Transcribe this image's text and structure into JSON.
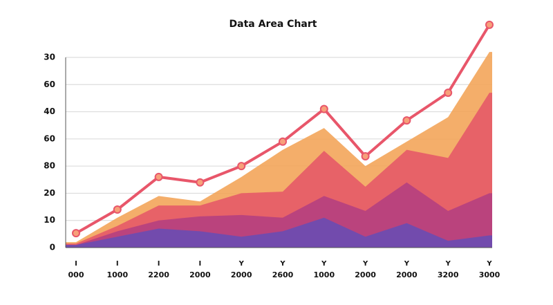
{
  "chart_data": {
    "type": "area",
    "title": "Data Area Chart",
    "categories": [
      "000",
      "1000",
      "2200",
      "2000",
      "2000",
      "2600",
      "1000",
      "2000",
      "2000",
      "3200",
      "3000"
    ],
    "x_tick_symbols": [
      "I",
      "I",
      "I",
      "I",
      "Y",
      "Y",
      "Y",
      "Y",
      "Y",
      "Y",
      "Y"
    ],
    "ylim": [
      0,
      70
    ],
    "yticks": [
      0,
      10,
      20,
      {
        "value": 30,
        "label": "80"
      },
      {
        "value": 40,
        "label": "60"
      },
      {
        "value": 50,
        "label": "40"
      },
      {
        "value": 60,
        "label": "60"
      },
      {
        "value": 70,
        "label": "30"
      }
    ],
    "grid": true,
    "series": [
      {
        "color": "#f3a55a",
        "values": [
          2,
          11,
          19,
          17,
          26,
          36,
          44,
          30,
          39,
          48,
          72
        ]
      },
      {
        "color": "#e65a68",
        "values": [
          1.5,
          8,
          15.5,
          15.5,
          20,
          20.6,
          35.6,
          22.4,
          36,
          33,
          57
        ]
      },
      {
        "color": "#b5407f",
        "values": [
          1,
          6,
          10,
          11.5,
          12,
          11,
          19,
          13.5,
          24,
          13.5,
          20
        ]
      },
      {
        "color": "#6a4db2",
        "values": [
          1,
          4,
          7,
          6,
          4,
          6,
          11,
          4,
          9,
          2.5,
          4.5
        ]
      }
    ],
    "line": {
      "color": "#e8566a",
      "values": [
        5.3,
        14,
        26,
        24,
        30,
        39,
        51,
        33.6,
        46.8,
        57,
        82
      ]
    }
  }
}
